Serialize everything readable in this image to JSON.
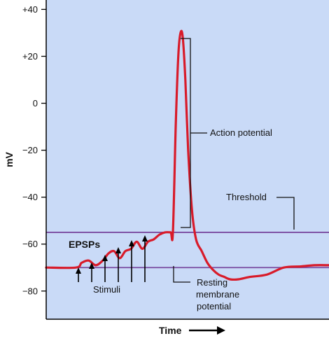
{
  "chart_data": {
    "type": "line",
    "title": "",
    "xlabel": "Time",
    "ylabel": "mV",
    "ylim": [
      -92,
      44
    ],
    "yticks": [
      40,
      20,
      0,
      -20,
      -40,
      -60,
      -80
    ],
    "ytick_labels": [
      "+40",
      "+20",
      "0",
      "−20",
      "−40",
      "−60",
      "−80"
    ],
    "xlim": [
      0,
      100
    ],
    "grid": false,
    "series": [
      {
        "values_x": [
          0,
          10.5,
          12.5,
          15,
          17.5,
          20,
          22,
          24,
          26,
          28,
          30,
          32,
          34,
          36,
          38,
          40,
          42,
          44,
          44.8,
          45.8,
          46.7,
          47.5,
          48.3,
          49.2,
          50.2,
          51.5,
          53,
          55,
          57,
          59,
          61,
          63,
          65,
          68,
          72,
          78,
          84,
          90,
          95,
          100
        ],
        "values_y": [
          -70,
          -70,
          -68,
          -67,
          -69,
          -67,
          -64,
          -63,
          -66,
          -63,
          -62,
          -59,
          -62,
          -59,
          -58,
          -56,
          -55,
          -55,
          -55,
          -10,
          20,
          30,
          28,
          10,
          -20,
          -45,
          -58,
          -63,
          -68,
          -71,
          -73,
          -74,
          -75,
          -75,
          -74,
          -73,
          -70,
          -69.5,
          -69,
          -69
        ]
      }
    ],
    "reference_lines": [
      {
        "label": "Threshold",
        "y": -55
      },
      {
        "label": "Resting membrane potential",
        "y": -70
      }
    ],
    "annotations": {
      "action_potential": "Action potential",
      "threshold": "Threshold",
      "resting_line1": "Resting",
      "resting_line2": "membrane",
      "resting_line3": "potential",
      "epsps": "EPSPs",
      "stimuli": "Stimuli",
      "time_arrow": "→"
    },
    "stimulus_count": 6
  },
  "colors": {
    "plot_background": "#c9daf7",
    "trace": "#d81b2a",
    "reference_line": "#7a4aa0",
    "axis": "#000000",
    "annotation_line": "#111111"
  }
}
